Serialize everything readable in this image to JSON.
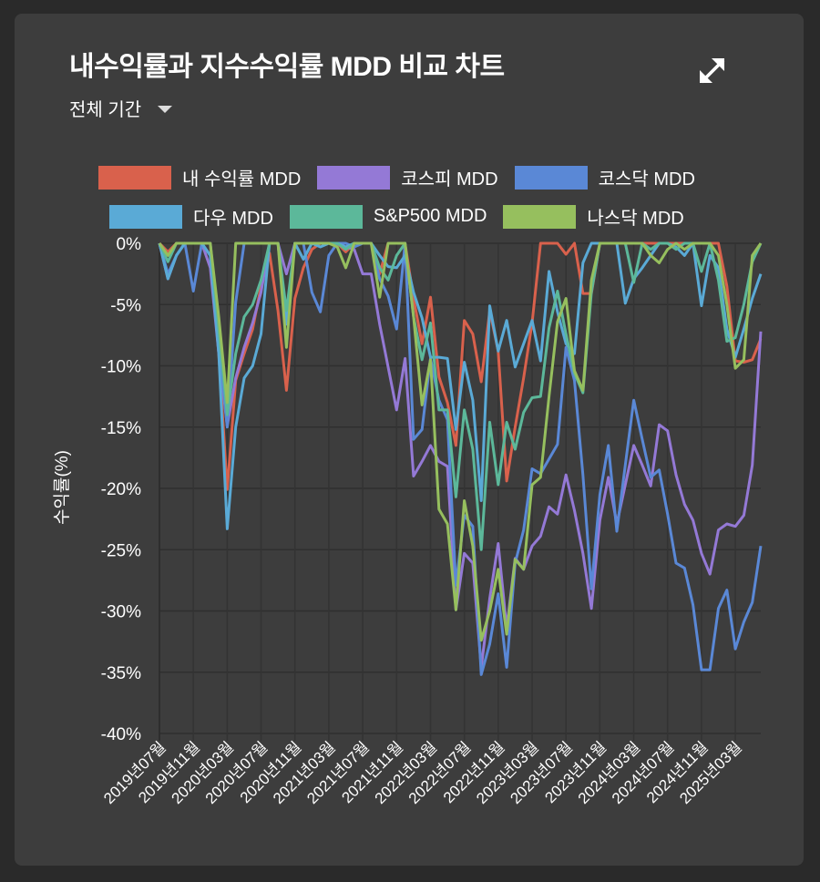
{
  "header": {
    "title": "내수익률과 지수수익률 MDD 비교 차트",
    "period_select": "전체 기간",
    "expand_icon": "expand-arrows-icon"
  },
  "chart_data": {
    "type": "line",
    "title": "내수익률과 지수수익률 MDD 비교 차트",
    "xlabel": "",
    "ylabel": "수익률(%)",
    "ylim": [
      -40,
      0
    ],
    "yticks": [
      0,
      -5,
      -10,
      -15,
      -20,
      -25,
      -30,
      -35,
      -40
    ],
    "ytick_labels": [
      "0%",
      "-5%",
      "-10%",
      "-15%",
      "-20%",
      "-25%",
      "-30%",
      "-35%",
      "-40%"
    ],
    "x_start": "2019-07",
    "x_frequency": "monthly",
    "x_count": 72,
    "xtick_labels": [
      "2019년07월",
      "2019년11월",
      "2020년03월",
      "2020년07월",
      "2020년11월",
      "2021년03월",
      "2021년07월",
      "2021년11월",
      "2022년03월",
      "2022년07월",
      "2022년11월",
      "2023년03월",
      "2023년07월",
      "2023년11월",
      "2024년03월",
      "2024년07월",
      "2024년11월",
      "2025년03월"
    ],
    "grid": true,
    "legend_position": "top",
    "series": [
      {
        "name": "내 수익률 MDD",
        "color": "#d9614c",
        "values": [
          0,
          -0.7,
          0,
          0,
          0,
          0,
          0,
          -9,
          -20.1,
          -11.2,
          -9,
          -7,
          -3.5,
          -0.8,
          -5.5,
          -12,
          -4.5,
          -2,
          -0.5,
          0,
          0,
          0,
          -0.7,
          0,
          0,
          0,
          -2.5,
          0,
          0,
          0,
          -4.5,
          -8.2,
          -4.4,
          -10.9,
          -13,
          -16.5,
          -6.3,
          -7.4,
          -11.3,
          -5.5,
          -8.8,
          -19.4,
          -15,
          -11,
          -6.5,
          0,
          0,
          0,
          -0.9,
          0,
          -4.1,
          -4.1,
          0,
          0,
          0,
          0,
          0,
          0,
          0,
          0,
          0,
          0,
          0,
          0,
          0,
          0,
          0,
          -3.5,
          -9.6,
          -9.7,
          -9.5,
          -7.8
        ]
      },
      {
        "name": "코스피 MDD",
        "color": "#9479d6",
        "values": [
          0,
          -2.9,
          -1,
          0,
          0,
          0,
          -2,
          -9,
          -14.9,
          -11,
          -8.5,
          -6.5,
          -4,
          0,
          0,
          -2.5,
          0,
          0,
          0,
          0,
          0,
          0,
          -0.3,
          -0.5,
          -2.5,
          -2.5,
          -6.6,
          -10.1,
          -13.6,
          -9.4,
          -19,
          -17.8,
          -16.5,
          -17.8,
          -18.2,
          -29.9,
          -25.3,
          -26.1,
          -34.6,
          -29,
          -24.5,
          -31.4,
          -25.7,
          -26.6,
          -24.7,
          -23.9,
          -21.5,
          -22.1,
          -18.9,
          -21.8,
          -25.3,
          -29.8,
          -22.6,
          -19.1,
          -22.9,
          -19.7,
          -16.5,
          -18.1,
          -19.8,
          -14.8,
          -15.3,
          -18.9,
          -21.3,
          -22.6,
          -25.3,
          -27,
          -23.4,
          -22.9,
          -23.1,
          -22.2,
          -18.1,
          -7.2
        ]
      },
      {
        "name": "코스닥 MDD",
        "color": "#5a88d6",
        "values": [
          0,
          -2.5,
          -1,
          0,
          -3.9,
          0,
          -1,
          -8,
          -15,
          -4.8,
          0,
          0,
          0,
          0,
          0,
          -6.6,
          0,
          0,
          -4,
          -5.6,
          -1,
          0,
          0,
          -0.3,
          0,
          0,
          -2.9,
          -4.3,
          -7,
          0,
          -16,
          -15.2,
          -9.4,
          -12.8,
          -14.4,
          -27.9,
          -22.2,
          -23.1,
          -35.2,
          -32.7,
          -28.6,
          -34.6,
          -26.1,
          -23.4,
          -18.4,
          -18.8,
          -17.6,
          -16.4,
          -8.5,
          -11.2,
          -18.9,
          -28.2,
          -20.5,
          -16.5,
          -23.5,
          -18.1,
          -12.8,
          -16,
          -19.1,
          -18.5,
          -22.1,
          -26.1,
          -26.5,
          -29.5,
          -34.8,
          -34.8,
          -29.8,
          -28.3,
          -33.1,
          -30.9,
          -29.3,
          -24.7
        ]
      },
      {
        "name": "다우 MDD",
        "color": "#5aaad6",
        "values": [
          0,
          -2.9,
          -1,
          0,
          0,
          0,
          -1,
          -9,
          -23.3,
          -15,
          -11,
          -10,
          -7.4,
          0,
          0,
          -6.6,
          0,
          -1.3,
          0,
          -0.3,
          0,
          0,
          -0.3,
          0,
          0,
          0,
          -1,
          -1.9,
          -2,
          -1,
          -4,
          -6.1,
          -9.3,
          -9.3,
          -9.4,
          -15.2,
          -9.7,
          -12.8,
          -21,
          -5.1,
          -8.8,
          -6.3,
          -10.1,
          -8.2,
          -6.3,
          -9.6,
          -2.3,
          -5.6,
          -8.2,
          -9,
          -1.6,
          0,
          0,
          0,
          0,
          -4.9,
          -2.9,
          -2,
          -1,
          0,
          0,
          -0.3,
          -1,
          0,
          -5.1,
          -1,
          -2,
          -7,
          -9.3,
          -7,
          -4.5,
          -2.5
        ]
      },
      {
        "name": "S&P500 MDD",
        "color": "#5cb89a",
        "values": [
          0,
          -1.5,
          0,
          0,
          0,
          0,
          0,
          -7,
          -14,
          -9,
          -6,
          -5,
          -3,
          0,
          0,
          -5.5,
          0,
          0,
          0,
          0,
          0,
          0,
          -0.5,
          0,
          0,
          0,
          -2,
          -3,
          -1,
          0,
          -6,
          -9.5,
          -6.5,
          -13.6,
          -13.6,
          -20.7,
          -13.6,
          -16.8,
          -25,
          -14.6,
          -19.7,
          -14.6,
          -16.8,
          -13.8,
          -12.6,
          -12.5,
          -6.9,
          -3.9,
          -7.4,
          -10.6,
          -12.2,
          -4,
          0,
          0,
          0,
          0,
          -3.2,
          0,
          -0.5,
          0,
          0,
          -0.5,
          0,
          0,
          -2.3,
          0,
          -3,
          -8,
          -7.7,
          -5,
          -1.5,
          0
        ]
      },
      {
        "name": "나스닥 MDD",
        "color": "#96bf5e",
        "values": [
          0,
          -1,
          0,
          0,
          0,
          0,
          0,
          -6,
          -13,
          0,
          0,
          0,
          0,
          0,
          0,
          -8.5,
          0,
          0,
          0,
          0,
          0,
          -0.3,
          -2,
          0,
          0,
          0,
          -4.4,
          0,
          0,
          0,
          -6,
          -13.2,
          -9.5,
          -21.7,
          -22.9,
          -29.9,
          -21,
          -24.7,
          -32.4,
          -30,
          -26.6,
          -31.9,
          -25.8,
          -26.6,
          -19.7,
          -19.1,
          -12.5,
          -6.4,
          -4.5,
          -10.4,
          -12,
          -3,
          0,
          0,
          0,
          0,
          0,
          0,
          -1,
          -1.6,
          -0.5,
          0,
          -0.5,
          0,
          0,
          0,
          -1,
          -5,
          -10.2,
          -9.5,
          -1,
          0
        ]
      }
    ]
  }
}
